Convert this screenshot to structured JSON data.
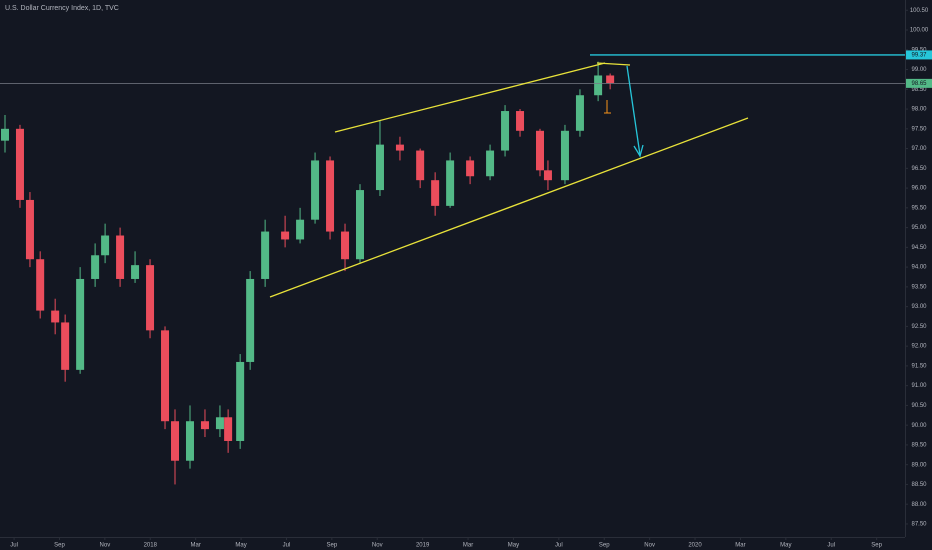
{
  "chart_data": {
    "type": "candlestick",
    "title": "U.S. Dollar Currency Index, 1D, TVC",
    "x": [
      -0.4,
      0.26,
      0.7,
      1.15,
      1.81,
      2.25,
      2.91,
      3.57,
      4.01,
      4.67,
      5.33,
      5.99,
      6.65,
      7.09,
      7.75,
      8.41,
      9.07,
      9.43,
      9.96,
      10.4,
      11.06,
      11.94,
      12.6,
      13.26,
      13.92,
      14.58,
      15.24,
      16.12,
      17.0,
      17.89,
      18.55,
      19.21,
      20.09,
      20.97,
      21.63,
      22.29,
      23.17,
      23.52,
      24.27,
      24.93,
      25.73,
      26.26
    ],
    "open": [
      97.2,
      97.5,
      95.7,
      94.2,
      92.9,
      92.6,
      91.4,
      93.7,
      94.3,
      94.8,
      93.7,
      94.05,
      92.4,
      90.1,
      89.1,
      90.1,
      89.9,
      90.2,
      89.6,
      91.6,
      93.7,
      94.9,
      94.7,
      95.2,
      96.7,
      94.9,
      94.2,
      95.95,
      97.1,
      96.95,
      96.2,
      95.55,
      96.7,
      96.3,
      96.95,
      97.95,
      97.45,
      96.45,
      96.2,
      97.45,
      98.35,
      98.85
    ],
    "high": [
      97.85,
      97.6,
      95.9,
      94.4,
      93.2,
      92.8,
      94.0,
      94.6,
      95.1,
      95.0,
      94.4,
      94.2,
      92.5,
      90.4,
      90.5,
      90.4,
      90.5,
      90.4,
      91.8,
      93.9,
      95.2,
      95.3,
      95.5,
      96.9,
      96.8,
      95.1,
      96.1,
      97.7,
      97.3,
      97.0,
      96.4,
      96.9,
      96.8,
      97.1,
      98.1,
      98.0,
      97.5,
      96.7,
      97.6,
      98.5,
      99.2,
      98.9
    ],
    "low": [
      96.9,
      95.5,
      94.0,
      92.7,
      92.3,
      91.1,
      91.3,
      93.5,
      94.1,
      93.5,
      93.6,
      92.2,
      89.9,
      88.5,
      88.9,
      89.7,
      89.7,
      89.3,
      89.4,
      91.4,
      93.5,
      94.5,
      94.6,
      95.1,
      94.7,
      93.9,
      94.1,
      95.8,
      96.7,
      96.0,
      95.3,
      95.5,
      96.1,
      96.2,
      96.8,
      97.3,
      96.3,
      95.95,
      96.1,
      97.3,
      98.2,
      98.5
    ],
    "close": [
      97.5,
      95.7,
      94.2,
      92.9,
      92.6,
      91.4,
      93.7,
      94.3,
      94.8,
      93.7,
      94.05,
      92.4,
      90.1,
      89.1,
      90.1,
      89.9,
      90.2,
      89.6,
      91.6,
      93.7,
      94.9,
      94.7,
      95.2,
      96.7,
      94.9,
      94.2,
      95.95,
      97.1,
      96.95,
      96.2,
      95.55,
      96.7,
      96.3,
      96.95,
      97.95,
      97.45,
      96.45,
      96.2,
      97.45,
      98.35,
      98.85,
      98.65
    ],
    "up_color": "#53b987",
    "down_color": "#eb4d5c",
    "xlim": [
      -0.62,
      39.25
    ],
    "xticks": [
      {
        "value": 0,
        "label": "Jul"
      },
      {
        "value": 2,
        "label": "Sep"
      },
      {
        "value": 4,
        "label": "Nov"
      },
      {
        "value": 6,
        "label": "2018"
      },
      {
        "value": 8,
        "label": "Mar"
      },
      {
        "value": 10,
        "label": "May"
      },
      {
        "value": 12,
        "label": "Jul"
      },
      {
        "value": 14,
        "label": "Sep"
      },
      {
        "value": 16,
        "label": "Nov"
      },
      {
        "value": 18,
        "label": "2019"
      },
      {
        "value": 20,
        "label": "Mar"
      },
      {
        "value": 22,
        "label": "May"
      },
      {
        "value": 24,
        "label": "Jul"
      },
      {
        "value": 26,
        "label": "Sep"
      },
      {
        "value": 28,
        "label": "Nov"
      },
      {
        "value": 30,
        "label": "2020"
      },
      {
        "value": 32,
        "label": "Mar"
      },
      {
        "value": 34,
        "label": "May"
      },
      {
        "value": 36,
        "label": "Jul"
      },
      {
        "value": 38,
        "label": "Sep"
      }
    ],
    "ylim": [
      87.17,
      100.76
    ],
    "yticks": [
      {
        "value": 87.5,
        "label": "87.50"
      },
      {
        "value": 88,
        "label": "88.00"
      },
      {
        "value": 88.5,
        "label": "88.50"
      },
      {
        "value": 89,
        "label": "89.00"
      },
      {
        "value": 89.5,
        "label": "89.50"
      },
      {
        "value": 90,
        "label": "90.00"
      },
      {
        "value": 90.5,
        "label": "90.50"
      },
      {
        "value": 91,
        "label": "91.00"
      },
      {
        "value": 91.5,
        "label": "91.50"
      },
      {
        "value": 92,
        "label": "92.00"
      },
      {
        "value": 92.5,
        "label": "92.50"
      },
      {
        "value": 93,
        "label": "93.00"
      },
      {
        "value": 93.5,
        "label": "93.50"
      },
      {
        "value": 94,
        "label": "94.00"
      },
      {
        "value": 94.5,
        "label": "94.50"
      },
      {
        "value": 95,
        "label": "95.00"
      },
      {
        "value": 95.5,
        "label": "95.50"
      },
      {
        "value": 96,
        "label": "96.00"
      },
      {
        "value": 96.5,
        "label": "96.50"
      },
      {
        "value": 97,
        "label": "97.00"
      },
      {
        "value": 97.5,
        "label": "97.50"
      },
      {
        "value": 98,
        "label": "98.00"
      },
      {
        "value": 98.5,
        "label": "98.50"
      },
      {
        "value": 99,
        "label": "99.00"
      },
      {
        "value": 99.5,
        "label": "99.50"
      },
      {
        "value": 100,
        "label": "100.00"
      },
      {
        "value": 100.5,
        "label": "100.50"
      }
    ],
    "grid": false,
    "price_lines": [
      {
        "value": 99.37,
        "label": "99.37",
        "color": "#26c6da"
      },
      {
        "value": 98.65,
        "label": "98.65",
        "color": "#53b987"
      }
    ]
  }
}
